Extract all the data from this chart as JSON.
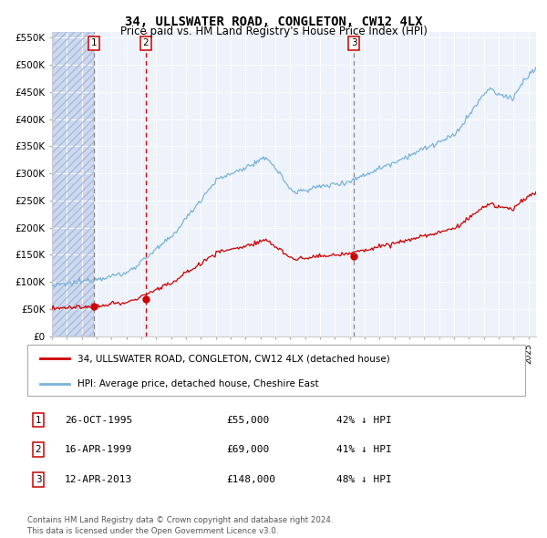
{
  "title": "34, ULLSWATER ROAD, CONGLETON, CW12 4LX",
  "subtitle": "Price paid vs. HM Land Registry's House Price Index (HPI)",
  "ylim": [
    0,
    560000
  ],
  "yticks": [
    0,
    50000,
    100000,
    150000,
    200000,
    250000,
    300000,
    350000,
    400000,
    450000,
    500000,
    550000
  ],
  "ytick_labels": [
    "£0",
    "£50K",
    "£100K",
    "£150K",
    "£200K",
    "£250K",
    "£300K",
    "£350K",
    "£400K",
    "£450K",
    "£500K",
    "£550K"
  ],
  "hpi_color": "#7ab3d9",
  "price_color": "#cc0000",
  "dot_color": "#cc0000",
  "purchase1_date": 1995.82,
  "purchase1_price": 55000,
  "purchase2_date": 1999.29,
  "purchase2_price": 69000,
  "purchase3_date": 2013.28,
  "purchase3_price": 148000,
  "legend_house_label": "34, ULLSWATER ROAD, CONGLETON, CW12 4LX (detached house)",
  "legend_hpi_label": "HPI: Average price, detached house, Cheshire East",
  "table_entries": [
    {
      "num": "1",
      "date": "26-OCT-1995",
      "price": "£55,000",
      "hpi": "42% ↓ HPI"
    },
    {
      "num": "2",
      "date": "16-APR-1999",
      "price": "£69,000",
      "hpi": "41% ↓ HPI"
    },
    {
      "num": "3",
      "date": "12-APR-2013",
      "price": "£148,000",
      "hpi": "48% ↓ HPI"
    }
  ],
  "footer": "Contains HM Land Registry data © Crown copyright and database right 2024.\nThis data is licensed under the Open Government Licence v3.0.",
  "xstart": 1993.0,
  "xend": 2025.5
}
